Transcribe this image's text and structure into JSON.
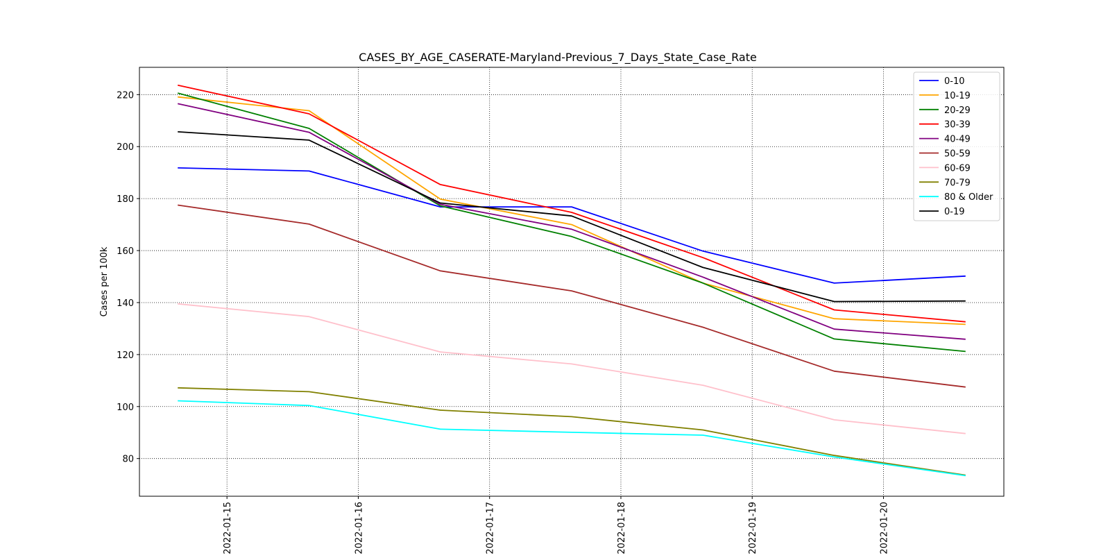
{
  "chart_data": {
    "type": "line",
    "title": "CASES_BY_AGE_CASERATE-Maryland-Previous_7_Days_State_Case_Rate",
    "xlabel": "",
    "ylabel": "Cases per 100k",
    "x": [
      "2022-01-14 15:00",
      "2022-01-15 15:00",
      "2022-01-16 15:00",
      "2022-01-17 15:00",
      "2022-01-18 15:00",
      "2022-01-19 15:00",
      "2022-01-20 15:00"
    ],
    "xlim": [
      "2022-01-14 08:00",
      "2022-01-20 22:00"
    ],
    "ylim": [
      65.5,
      230.5
    ],
    "xticks": [
      "2022-01-15",
      "2022-01-16",
      "2022-01-17",
      "2022-01-18",
      "2022-01-19",
      "2022-01-20"
    ],
    "yticks": [
      80,
      100,
      120,
      140,
      160,
      180,
      200,
      220
    ],
    "grid": true,
    "legend_position": "top-right",
    "series": [
      {
        "name": "0-10",
        "color": "#0000ff",
        "values": [
          191.8,
          190.6,
          176.8,
          176.8,
          159.8,
          147.5,
          150.2
        ]
      },
      {
        "name": "10-19",
        "color": "#ffa500",
        "values": [
          219.1,
          213.8,
          179.8,
          170.0,
          147.5,
          133.8,
          131.6
        ]
      },
      {
        "name": "20-29",
        "color": "#008000",
        "values": [
          220.6,
          207.0,
          177.2,
          165.4,
          147.5,
          126.0,
          121.2
        ]
      },
      {
        "name": "30-39",
        "color": "#ff0000",
        "values": [
          223.6,
          212.6,
          185.4,
          174.7,
          157.3,
          137.2,
          132.6
        ]
      },
      {
        "name": "40-49",
        "color": "#800080",
        "values": [
          216.5,
          205.5,
          177.8,
          168.2,
          149.8,
          129.8,
          125.9
        ]
      },
      {
        "name": "50-59",
        "color": "#a52a2a",
        "values": [
          177.5,
          170.2,
          152.2,
          144.5,
          130.5,
          113.6,
          107.5
        ]
      },
      {
        "name": "60-69",
        "color": "#ffc0cb",
        "values": [
          139.5,
          134.6,
          121.0,
          116.4,
          108.2,
          94.9,
          89.6
        ]
      },
      {
        "name": "70-79",
        "color": "#808000",
        "values": [
          107.2,
          105.7,
          98.6,
          96.1,
          91.0,
          81.2,
          73.6
        ]
      },
      {
        "name": "80 & Older",
        "color": "#00ffff",
        "values": [
          102.2,
          100.4,
          91.3,
          90.1,
          89.0,
          80.6,
          73.4
        ]
      },
      {
        "name": "0-19",
        "color": "#000000",
        "values": [
          205.7,
          202.5,
          178.3,
          173.3,
          153.5,
          140.4,
          140.6
        ]
      }
    ]
  }
}
